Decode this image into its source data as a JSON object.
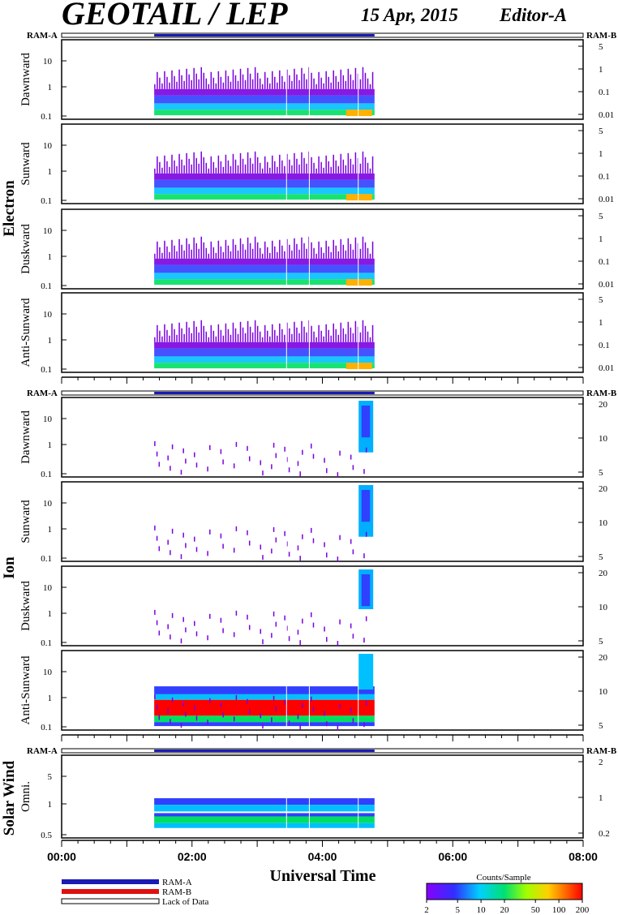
{
  "header": {
    "title": "GEOTAIL / LEP",
    "date": "15 Apr, 2015",
    "editor": "Editor-A"
  },
  "ram_labels": {
    "left": "RAM-A",
    "right": "RAM-B"
  },
  "colors": {
    "ram_a": "#1a1ab4",
    "ram_b": "#e01010",
    "lack": "#ffffff"
  },
  "legend": {
    "ram_a": "RAM-A",
    "ram_b": "RAM-B",
    "lack": "Lack of Data",
    "colorbar_title": "Counts/Sample",
    "colorbar_ticks": [
      "2",
      "5",
      "10",
      "20",
      "50",
      "100",
      "200"
    ]
  },
  "chart_data": {
    "type": "heatmap",
    "xlabel": "Universal Time",
    "x_ticks": [
      "00:00",
      "02:00",
      "04:00",
      "06:00",
      "08:00"
    ],
    "x_range_hours": [
      0,
      8
    ],
    "data_coverage_hours": [
      1.42,
      4.8
    ],
    "groups": [
      {
        "label": "Electron",
        "panels": [
          {
            "label": "Dawnward",
            "left_ticks": [
              "10",
              "1",
              "0.1"
            ],
            "right_ticks": [
              "5",
              "1",
              "0.1",
              "0.01"
            ]
          },
          {
            "label": "Sunward",
            "left_ticks": [
              "10",
              "1",
              "0.1"
            ],
            "right_ticks": [
              "5",
              "1",
              "0.1",
              "0.01"
            ]
          },
          {
            "label": "Duskward",
            "left_ticks": [
              "10",
              "1",
              "0.1"
            ],
            "right_ticks": [
              "5",
              "1",
              "0.1",
              "0.01"
            ]
          },
          {
            "label": "Anti-Sunward",
            "left_ticks": [
              "10",
              "1",
              "0.1"
            ],
            "right_ticks": [
              "5",
              "1",
              "0.1",
              "0.01"
            ]
          }
        ]
      },
      {
        "label": "Ion",
        "panels": [
          {
            "label": "Dawnward",
            "left_ticks": [
              "10",
              "1",
              "0.1"
            ],
            "right_ticks": [
              "20",
              "10",
              "5"
            ]
          },
          {
            "label": "Sunward",
            "left_ticks": [
              "10",
              "1",
              "0.1"
            ],
            "right_ticks": [
              "20",
              "10",
              "5"
            ]
          },
          {
            "label": "Duskward",
            "left_ticks": [
              "10",
              "1",
              "0.1"
            ],
            "right_ticks": [
              "20",
              "10",
              "5"
            ]
          },
          {
            "label": "Anti-Sunward",
            "left_ticks": [
              "10",
              "1",
              "0.1"
            ],
            "right_ticks": [
              "20",
              "10",
              "5"
            ]
          }
        ]
      },
      {
        "label": "Solar Wind",
        "panels": [
          {
            "label": "Omni.",
            "left_ticks": [
              "5",
              "1",
              "0.5"
            ],
            "right_ticks": [
              "2",
              "1",
              "0.2"
            ]
          }
        ]
      }
    ]
  }
}
